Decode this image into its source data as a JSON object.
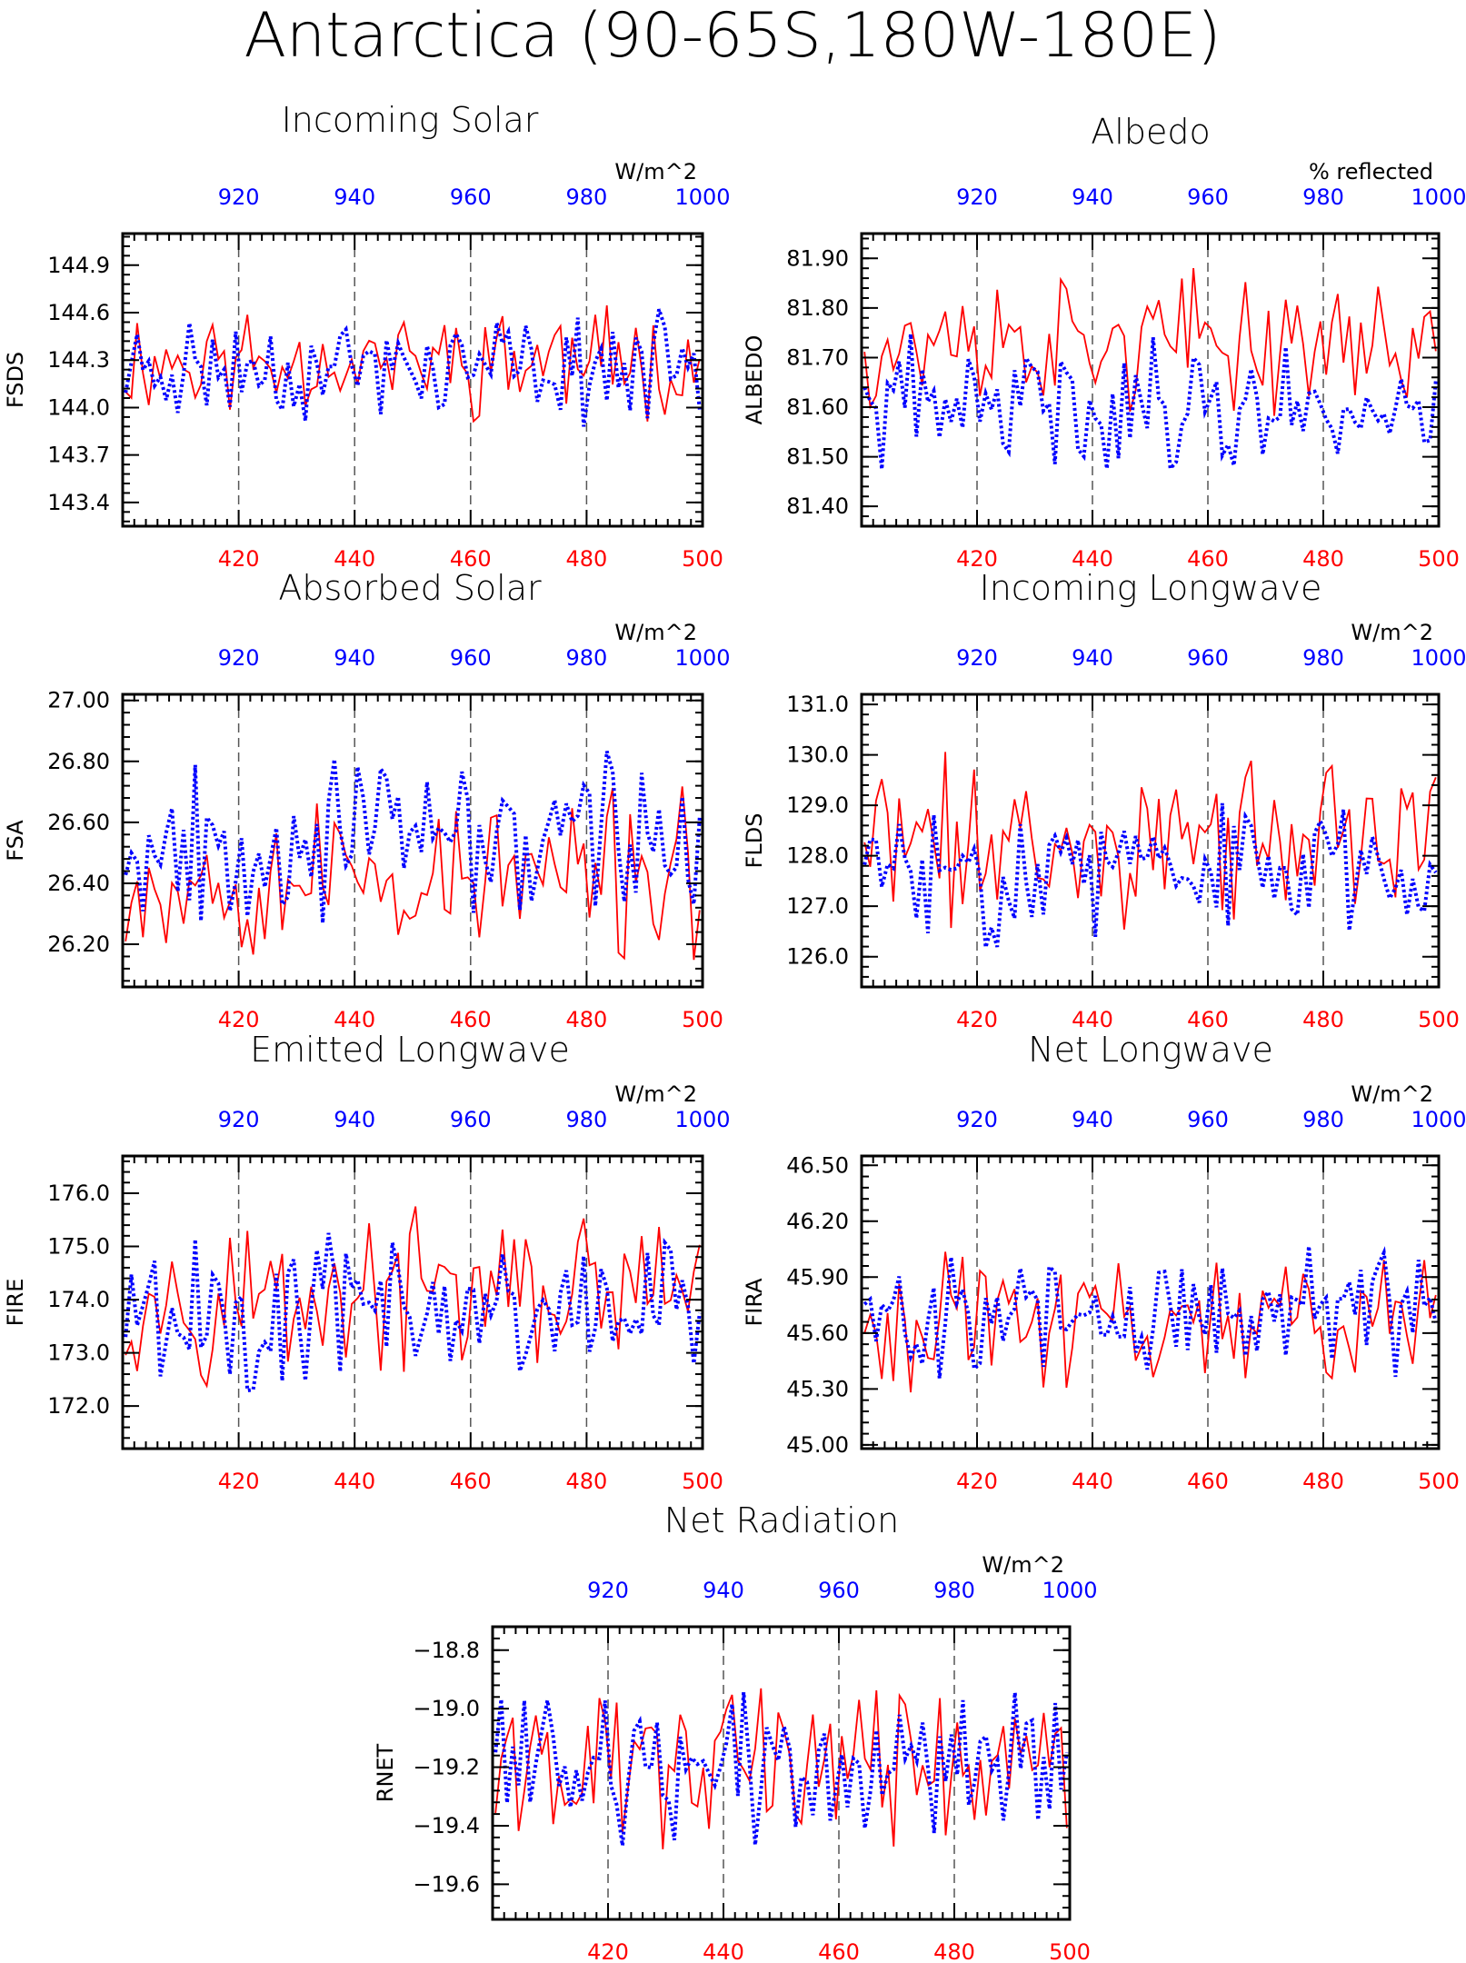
{
  "figure_title": "Antarctica (90-65S,180W-180E)",
  "colors": {
    "bottom_axis": "#ff0000",
    "top_axis": "#0000ff",
    "axes": "#000000"
  },
  "chart_data": [
    {
      "type": "line",
      "id": "fsds",
      "title": "Incoming Solar",
      "ylabel": "FSDS",
      "units": "W/m^2",
      "ylim": [
        143.25,
        145.1
      ],
      "yticks": [
        143.4,
        143.7,
        144.0,
        144.3,
        144.6,
        144.9
      ],
      "ytick_decimals": 1,
      "xlim_bottom": [
        400,
        500
      ],
      "xticks_bottom": [
        420,
        440,
        460,
        480,
        500
      ],
      "xlim_top": [
        900,
        1000
      ],
      "xticks_top": [
        920,
        940,
        960,
        980,
        1000
      ],
      "grid": "dashed vertical at ticks",
      "series": [
        {
          "axis": "bottom",
          "style": "solid",
          "color": "#ff0000",
          "mean": 144.3,
          "amp": 0.26,
          "seed": 11
        },
        {
          "axis": "top",
          "style": "dotted",
          "color": "#0000ff",
          "mean": 144.25,
          "amp": 0.25,
          "seed": 23
        }
      ]
    },
    {
      "type": "line",
      "id": "albedo",
      "title": "Albedo",
      "ylabel": "ALBEDO",
      "units": "% reflected",
      "ylim": [
        81.36,
        81.95
      ],
      "yticks": [
        81.4,
        81.5,
        81.6,
        81.7,
        81.8,
        81.9
      ],
      "ytick_decimals": 2,
      "xlim_bottom": [
        400,
        500
      ],
      "xticks_bottom": [
        420,
        440,
        460,
        480,
        500
      ],
      "xlim_top": [
        900,
        1000
      ],
      "xticks_top": [
        920,
        940,
        960,
        980,
        1000
      ],
      "grid": "dashed vertical at ticks",
      "series": [
        {
          "axis": "bottom",
          "style": "solid",
          "color": "#ff0000",
          "mean": 81.73,
          "amp": 0.1,
          "seed": 37
        },
        {
          "axis": "top",
          "style": "dotted",
          "color": "#0000ff",
          "mean": 81.6,
          "amp": 0.1,
          "seed": 41
        }
      ]
    },
    {
      "type": "line",
      "id": "fsa",
      "title": "Absorbed Solar",
      "ylabel": "FSA",
      "units": "W/m^2",
      "ylim": [
        26.06,
        27.02
      ],
      "yticks": [
        26.2,
        26.4,
        26.6,
        26.8,
        27.0
      ],
      "ytick_decimals": 2,
      "xlim_bottom": [
        400,
        500
      ],
      "xticks_bottom": [
        420,
        440,
        460,
        480,
        500
      ],
      "xlim_top": [
        900,
        1000
      ],
      "xticks_top": [
        920,
        940,
        960,
        980,
        1000
      ],
      "grid": "dashed vertical at ticks",
      "series": [
        {
          "axis": "bottom",
          "style": "solid",
          "color": "#ff0000",
          "mean": 26.42,
          "amp": 0.2,
          "seed": 53
        },
        {
          "axis": "top",
          "style": "dotted",
          "color": "#0000ff",
          "mean": 26.55,
          "amp": 0.2,
          "seed": 67
        }
      ]
    },
    {
      "type": "line",
      "id": "flds",
      "title": "Incoming Longwave",
      "ylabel": "FLDS",
      "units": "W/m^2",
      "ylim": [
        125.4,
        131.2
      ],
      "yticks": [
        126.0,
        127.0,
        128.0,
        129.0,
        130.0,
        131.0
      ],
      "ytick_decimals": 1,
      "xlim_bottom": [
        400,
        500
      ],
      "xticks_bottom": [
        420,
        440,
        460,
        480,
        500
      ],
      "xlim_top": [
        900,
        1000
      ],
      "xticks_top": [
        920,
        940,
        960,
        980,
        1000
      ],
      "grid": "dashed vertical at ticks",
      "series": [
        {
          "axis": "bottom",
          "style": "solid",
          "color": "#ff0000",
          "mean": 128.3,
          "amp": 1.2,
          "seed": 71
        },
        {
          "axis": "top",
          "style": "dotted",
          "color": "#0000ff",
          "mean": 127.7,
          "amp": 1.0,
          "seed": 83
        }
      ]
    },
    {
      "type": "line",
      "id": "fire",
      "title": "Emitted Longwave",
      "ylabel": "FIRE",
      "units": "W/m^2",
      "ylim": [
        171.2,
        176.7
      ],
      "yticks": [
        172.0,
        173.0,
        174.0,
        175.0,
        176.0
      ],
      "ytick_decimals": 1,
      "xlim_bottom": [
        400,
        500
      ],
      "xticks_bottom": [
        420,
        440,
        460,
        480,
        500
      ],
      "xlim_top": [
        900,
        1000
      ],
      "xticks_top": [
        920,
        940,
        960,
        980,
        1000
      ],
      "grid": "dashed vertical at ticks",
      "series": [
        {
          "axis": "bottom",
          "style": "solid",
          "color": "#ff0000",
          "mean": 174.1,
          "amp": 1.1,
          "seed": 97
        },
        {
          "axis": "top",
          "style": "dotted",
          "color": "#0000ff",
          "mean": 173.8,
          "amp": 1.1,
          "seed": 101
        }
      ]
    },
    {
      "type": "line",
      "id": "fira",
      "title": "Net Longwave",
      "ylabel": "FIRA",
      "units": "W/m^2",
      "ylim": [
        44.98,
        46.55
      ],
      "yticks": [
        45.0,
        45.3,
        45.6,
        45.9,
        46.2,
        46.5
      ],
      "ytick_decimals": 2,
      "xlim_bottom": [
        400,
        500
      ],
      "xticks_bottom": [
        420,
        440,
        460,
        480,
        500
      ],
      "xlim_top": [
        900,
        1000
      ],
      "xticks_top": [
        920,
        940,
        960,
        980,
        1000
      ],
      "grid": "dashed vertical at ticks",
      "series": [
        {
          "axis": "bottom",
          "style": "solid",
          "color": "#ff0000",
          "mean": 45.68,
          "amp": 0.26,
          "seed": 113
        },
        {
          "axis": "top",
          "style": "dotted",
          "color": "#0000ff",
          "mean": 45.72,
          "amp": 0.26,
          "seed": 127
        }
      ]
    },
    {
      "type": "line",
      "id": "rnet",
      "title": "Net Radiation",
      "ylabel": "RNET",
      "units": "W/m^2",
      "ylim": [
        -19.72,
        -18.72
      ],
      "yticks": [
        -19.6,
        -19.4,
        -19.2,
        -19.0,
        -18.8
      ],
      "ytick_decimals": 1,
      "xlim_bottom": [
        400,
        500
      ],
      "xticks_bottom": [
        420,
        440,
        460,
        480,
        500
      ],
      "xlim_top": [
        900,
        1000
      ],
      "xticks_top": [
        920,
        940,
        960,
        980,
        1000
      ],
      "grid": "dashed vertical at ticks",
      "series": [
        {
          "axis": "bottom",
          "style": "solid",
          "color": "#ff0000",
          "mean": -19.18,
          "amp": 0.2,
          "seed": 131
        },
        {
          "axis": "top",
          "style": "dotted",
          "color": "#0000ff",
          "mean": -19.2,
          "amp": 0.18,
          "seed": 139
        }
      ]
    }
  ]
}
